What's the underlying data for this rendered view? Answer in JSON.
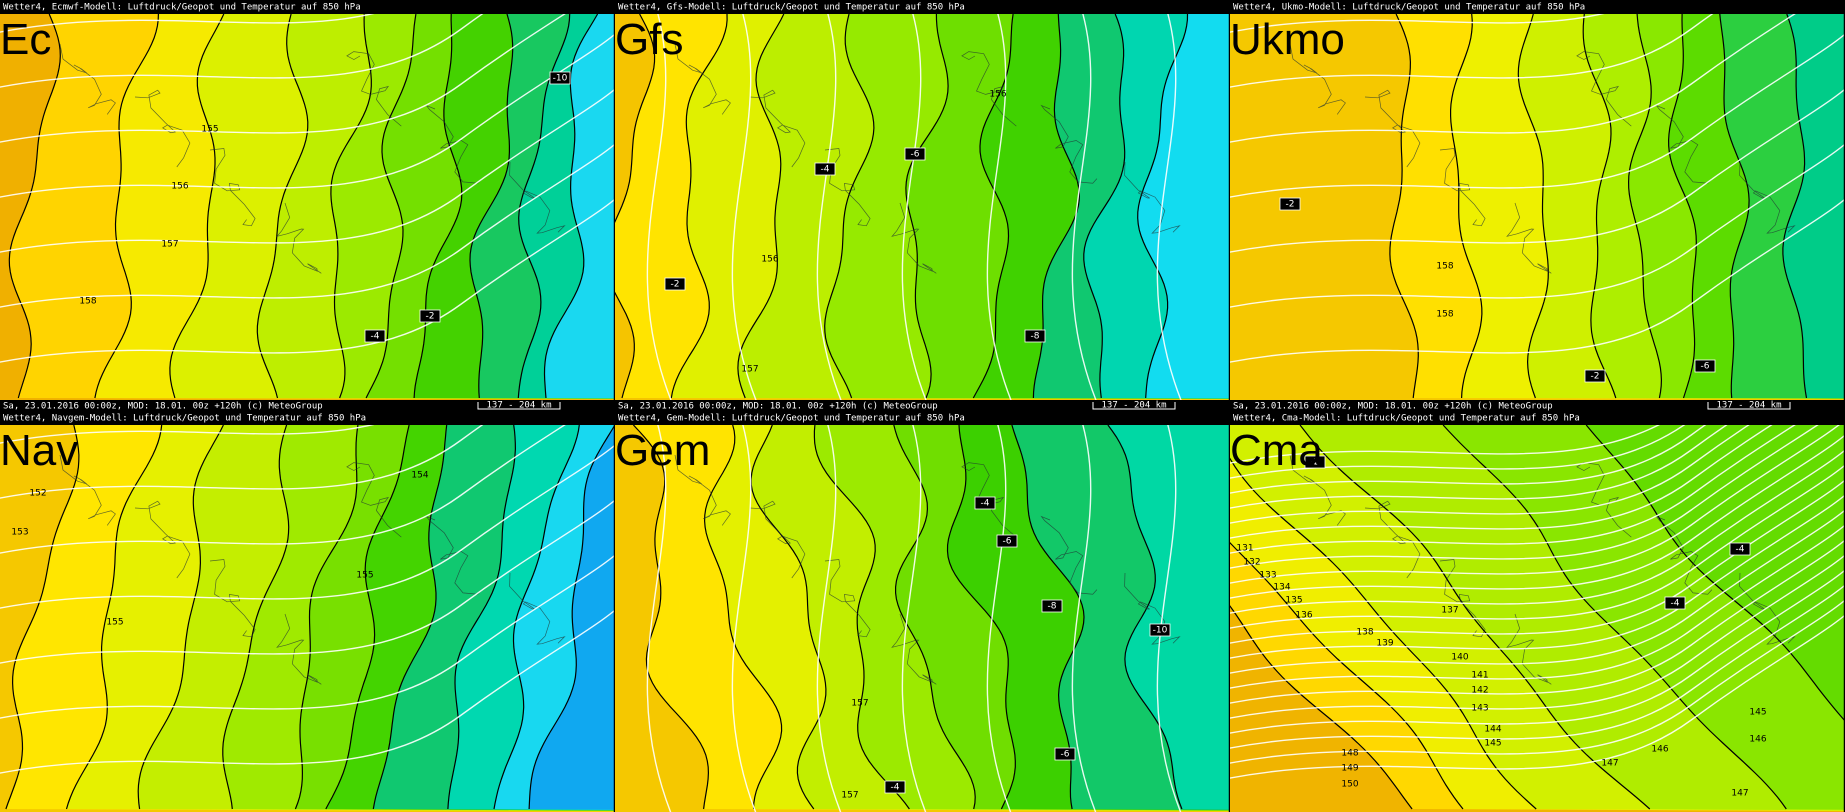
{
  "panels": [
    {
      "header": "Wetter4, Ecmwf-Modell: Luftdruck/Geopot und Temperatur auf 850 hPa",
      "label": "Ec",
      "footer": "Sa, 23.01.2016 00:00z, MOD: 18.01. 00z +120h (c) MeteoGroup",
      "scale": "137 - 204 km",
      "contour_labels": [
        "155",
        "156",
        "157",
        "158",
        "-10",
        "-2",
        "-4"
      ]
    },
    {
      "header": "Wetter4, Gfs-Modell: Luftdruck/Geopot und Temperatur auf 850 hPa",
      "label": "Gfs",
      "footer": "Sa, 23.01.2016 00:00z, MOD: 18.01. 00z +120h (c) MeteoGroup",
      "scale": "137 - 204 km",
      "contour_labels": [
        "156",
        "156",
        "157",
        "-4",
        "-6",
        "-8",
        "-2"
      ]
    },
    {
      "header": "Wetter4, Ukmo-Modell: Luftdruck/Geopot und Temperatur auf 850 hPa",
      "label": "Ukmo",
      "footer": "Sa, 23.01.2016 00:00z, MOD: 18.01. 00z +120h (c) MeteoGroup",
      "scale": "137 - 204 km",
      "contour_labels": [
        "158",
        "158",
        "-2",
        "-6",
        "-2"
      ]
    },
    {
      "header": "Wetter4, Navgem-Modell: Luftdruck/Geopot und Temperatur auf 850 hPa",
      "label": "Nav",
      "contour_labels": [
        "152",
        "153",
        "154",
        "155",
        "155"
      ]
    },
    {
      "header": "Wetter4, Gem-Modell: Luftdruck/Geopot und Temperatur auf 850 hPa",
      "label": "Gem",
      "contour_labels": [
        "-4",
        "-6",
        "-8",
        "-10",
        "157",
        "-6",
        "157",
        "-4"
      ]
    },
    {
      "header": "Wetter4, Cma-Modell: Luftdruck/Geopot und Temperatur auf 850 hPa",
      "label": "Cma",
      "contour_labels": [
        "-2",
        "-4",
        "-4",
        "131",
        "132",
        "133",
        "134",
        "135",
        "136",
        "137",
        "138",
        "139",
        "140",
        "141",
        "142",
        "143",
        "144",
        "145",
        "146",
        "147",
        "148",
        "149",
        "150",
        "145",
        "146",
        "147"
      ]
    }
  ]
}
